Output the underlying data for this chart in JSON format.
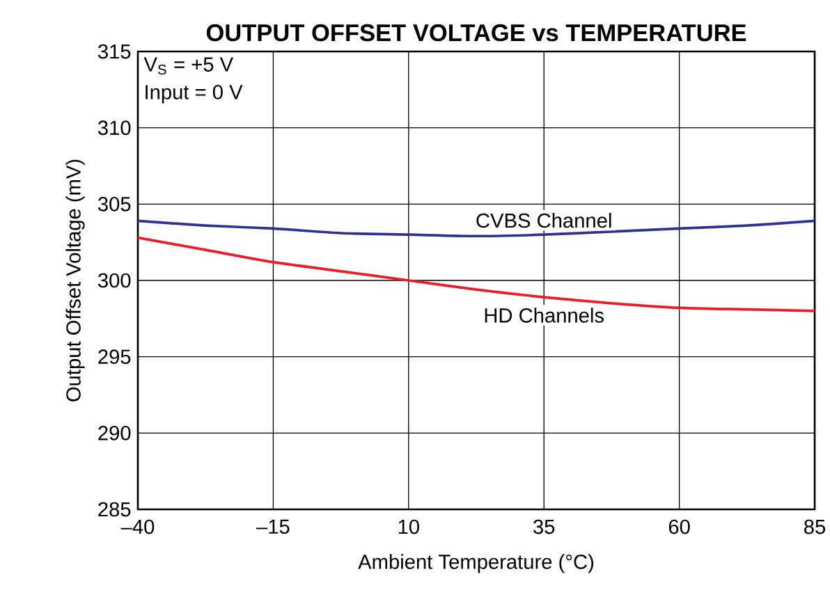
{
  "chart_data": {
    "type": "line",
    "title": "OUTPUT OFFSET VOLTAGE vs TEMPERATURE",
    "xlabel": "Ambient Temperature (°C)",
    "ylabel": "Output Offset Voltage (mV)",
    "annotations": [
      "V$_{S}$ = +5 V",
      "Input = 0 V"
    ],
    "x": [
      -40,
      -27.5,
      -15,
      -2.5,
      10,
      22.5,
      35,
      47.5,
      60,
      72.5,
      85
    ],
    "series": [
      {
        "name": "CVBS Channel",
        "color": "#2e3192",
        "values": [
          303.9,
          303.6,
          303.4,
          303.1,
          303.0,
          302.9,
          303.0,
          303.2,
          303.4,
          303.6,
          303.9
        ]
      },
      {
        "name": "HD Channels",
        "color": "#ed1c24",
        "values": [
          302.8,
          302.0,
          301.2,
          300.6,
          300.0,
          299.4,
          298.9,
          298.5,
          298.2,
          298.1,
          298.0
        ]
      }
    ],
    "xlim": [
      -40,
      85
    ],
    "ylim": [
      285,
      315
    ],
    "xticks": [
      {
        "value": -40,
        "label": "–40"
      },
      {
        "value": -15,
        "label": "–15"
      },
      10,
      35,
      60,
      85
    ],
    "yticks": [
      285,
      290,
      295,
      300,
      305,
      310,
      315
    ],
    "grid": true,
    "marker": "none",
    "line_style": "solid"
  }
}
